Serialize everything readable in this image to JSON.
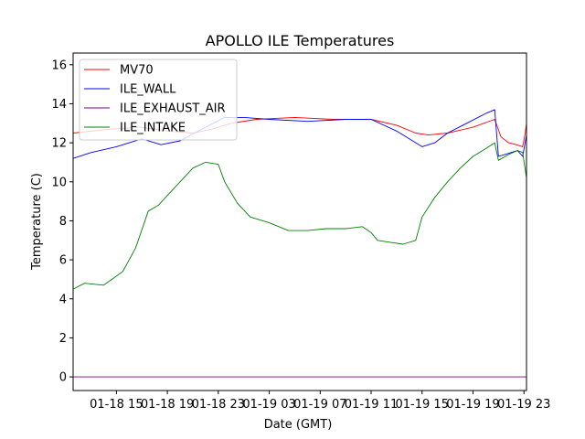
{
  "chart_data": {
    "type": "line",
    "title": "APOLLO ILE Temperatures",
    "xlabel": "Date (GMT)",
    "ylabel": "Temperature (C)",
    "x_unit": "hours since 01-18 00:00 GMT",
    "xlim": [
      11.6,
      47.2
    ],
    "ylim": [
      -0.7,
      16.6
    ],
    "yticks": [
      0,
      2,
      4,
      6,
      8,
      10,
      12,
      14,
      16
    ],
    "xticks": [
      {
        "value": 15,
        "label": "01-18 15"
      },
      {
        "value": 19,
        "label": "01-18 19"
      },
      {
        "value": 23,
        "label": "01-18 23"
      },
      {
        "value": 27,
        "label": "01-19 03"
      },
      {
        "value": 31,
        "label": "01-19 07"
      },
      {
        "value": 35,
        "label": "01-19 11"
      },
      {
        "value": 39,
        "label": "01-19 15"
      },
      {
        "value": 43,
        "label": "01-19 19"
      },
      {
        "value": 47,
        "label": "01-19 23"
      }
    ],
    "legend_location": "top-left",
    "series": [
      {
        "name": "MV70",
        "color": "#ff0000",
        "x": [
          11.6,
          14.5,
          17,
          19,
          21,
          22.5,
          24,
          26,
          29,
          32,
          35,
          37,
          38.5,
          39.5,
          41,
          43,
          44.7,
          45.2,
          45.8,
          46.4,
          46.9,
          47.1,
          47.2
        ],
        "y": [
          12.5,
          12.7,
          12.8,
          12.6,
          12.5,
          12.7,
          13.0,
          13.2,
          13.3,
          13.2,
          13.2,
          12.9,
          12.5,
          12.4,
          12.5,
          12.8,
          13.2,
          12.3,
          12.0,
          11.9,
          11.8,
          12.5,
          13.0
        ]
      },
      {
        "name": "ILE_WALL",
        "color": "#0000ff",
        "x": [
          11.6,
          13,
          15,
          17,
          18.5,
          20,
          22,
          23.5,
          25,
          27,
          30,
          33,
          35,
          37,
          39,
          40,
          41,
          42.5,
          44,
          44.7,
          45,
          45.5,
          46.5,
          46.9,
          47.2
        ],
        "y": [
          11.2,
          11.5,
          11.8,
          12.2,
          11.9,
          12.1,
          12.8,
          13.3,
          13.3,
          13.2,
          13.1,
          13.2,
          13.2,
          12.6,
          11.8,
          12.0,
          12.5,
          13.0,
          13.5,
          13.7,
          11.3,
          11.4,
          11.6,
          11.3,
          12.4
        ]
      },
      {
        "name": "ILE_EXHAUST_AIR",
        "color": "#800080",
        "x": [
          11.6,
          47.2
        ],
        "y": [
          0.0,
          0.0
        ]
      },
      {
        "name": "ILE_INTAKE",
        "color": "#008000",
        "x": [
          11.6,
          12.5,
          14,
          15.5,
          16.5,
          17.5,
          18.3,
          19,
          20,
          21,
          22,
          23,
          23.5,
          24.5,
          25.5,
          27,
          28.5,
          30,
          31.5,
          33,
          34.3,
          35,
          35.5,
          36.5,
          37.5,
          38.5,
          39,
          40,
          41,
          42,
          43,
          44,
          44.7,
          45,
          45.8,
          46.5,
          46.9,
          47.2
        ],
        "y": [
          4.5,
          4.8,
          4.7,
          5.4,
          6.6,
          8.5,
          8.8,
          9.3,
          10.0,
          10.7,
          11.0,
          10.9,
          10.0,
          8.9,
          8.2,
          7.9,
          7.5,
          7.5,
          7.6,
          7.6,
          7.7,
          7.4,
          7.0,
          6.9,
          6.8,
          7.0,
          8.2,
          9.2,
          10.0,
          10.7,
          11.3,
          11.7,
          12.0,
          11.1,
          11.4,
          11.6,
          11.5,
          10.2
        ]
      }
    ]
  }
}
